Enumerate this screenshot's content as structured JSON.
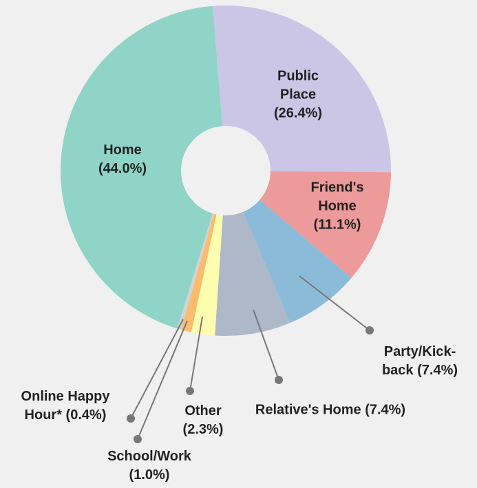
{
  "chart_data": {
    "type": "donut",
    "categories": [
      "Public Place",
      "Friend's Home",
      "Party/Kick-back",
      "Relative's Home",
      "Other",
      "School/Work",
      "Online Happy Hour*",
      "Home"
    ],
    "values": [
      26.4,
      11.1,
      7.4,
      7.4,
      2.3,
      1.0,
      0.4,
      44.0
    ],
    "value_labels": [
      "(26.4%)",
      "(11.1%)",
      "(7.4%)",
      "(7.4%)",
      "(2.3%)",
      "(1.0%)",
      "(0.4%)",
      "(44.0%)"
    ],
    "colors": [
      "#cbc6e6",
      "#ec9a9a",
      "#8cbad9",
      "#adb8c8",
      "#fdfdb0",
      "#fdbb6c",
      "#d3d3d3",
      "#8fd4c7"
    ]
  }
}
